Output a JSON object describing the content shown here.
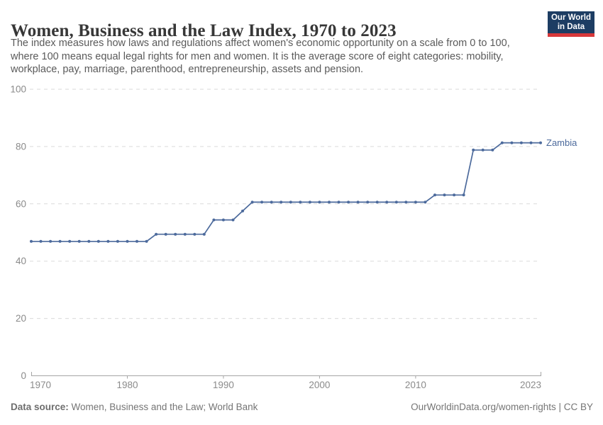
{
  "header": {
    "title": "Women, Business and the Law Index, 1970 to 2023",
    "subtitle_lines": [
      "The index measures how laws and regulations affect women's economic opportunity on a scale from 0 to 100,",
      "where 100 means equal legal rights for men and women. It is the average score of eight categories: mobility,",
      "workplace, pay, marriage, parenthood, entrepreneurship, assets and pension."
    ]
  },
  "logo": {
    "line1": "Our World",
    "line2": "in Data",
    "bg_color": "#1d3d63",
    "stripe_color": "#d7383a"
  },
  "chart_data": {
    "type": "line",
    "title": "Women, Business and the Law Index, 1970 to 2023",
    "xlabel": "",
    "ylabel": "",
    "xlim": [
      1970,
      2023
    ],
    "ylim": [
      0,
      100
    ],
    "xticks": [
      1970,
      1980,
      1990,
      2000,
      2010,
      2023
    ],
    "yticks": [
      0,
      20,
      40,
      60,
      80,
      100
    ],
    "grid": "horizontal-dashed",
    "legend_position": "end-of-line-label",
    "series": [
      {
        "name": "Zambia",
        "color": "#4C6A9C",
        "x": [
          1970,
          1971,
          1972,
          1973,
          1974,
          1975,
          1976,
          1977,
          1978,
          1979,
          1980,
          1981,
          1982,
          1983,
          1984,
          1985,
          1986,
          1987,
          1988,
          1989,
          1990,
          1991,
          1992,
          1993,
          1994,
          1995,
          1996,
          1997,
          1998,
          1999,
          2000,
          2001,
          2002,
          2003,
          2004,
          2005,
          2006,
          2007,
          2008,
          2009,
          2010,
          2011,
          2012,
          2013,
          2014,
          2015,
          2016,
          2017,
          2018,
          2019,
          2020,
          2021,
          2022,
          2023
        ],
        "values": [
          46.9,
          46.9,
          46.9,
          46.9,
          46.9,
          46.9,
          46.9,
          46.9,
          46.9,
          46.9,
          46.9,
          46.9,
          46.9,
          49.4,
          49.4,
          49.4,
          49.4,
          49.4,
          49.4,
          54.4,
          54.4,
          54.4,
          57.5,
          60.6,
          60.6,
          60.6,
          60.6,
          60.6,
          60.6,
          60.6,
          60.6,
          60.6,
          60.6,
          60.6,
          60.6,
          60.6,
          60.6,
          60.6,
          60.6,
          60.6,
          60.6,
          60.6,
          63.1,
          63.1,
          63.1,
          63.1,
          78.8,
          78.8,
          78.8,
          81.3,
          81.3,
          81.3,
          81.3,
          81.3
        ]
      }
    ],
    "axis_text_color": "#8b8b8b",
    "gridline_color": "#dadada",
    "axis_line_color": "#a5a5a5"
  },
  "footer": {
    "source_label": "Data source:",
    "source_text": " Women, Business and the Law; World Bank",
    "credit": "OurWorldinData.org/women-rights | CC BY"
  }
}
